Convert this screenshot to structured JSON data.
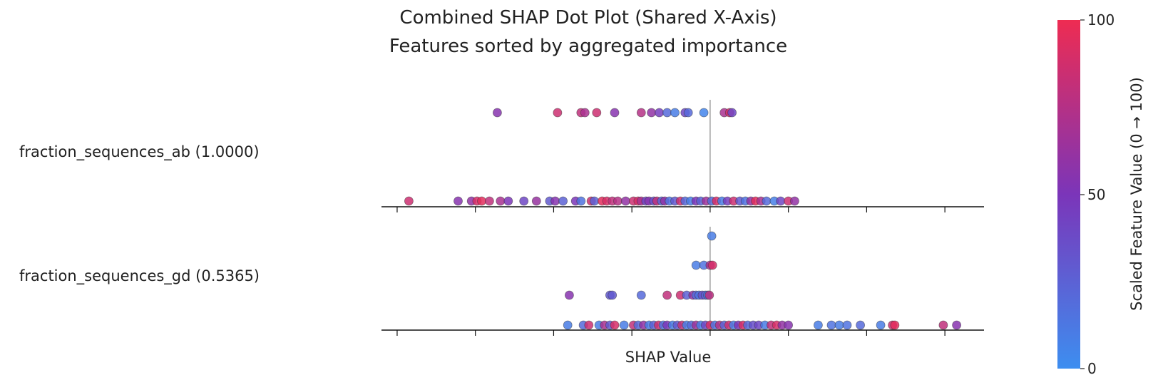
{
  "chart_data": {
    "type": "scatter",
    "title": "Combined SHAP Dot Plot (Shared X-Axis)",
    "subtitle": "Features sorted by aggregated importance",
    "xlabel": "SHAP Value",
    "xlim": [
      -0.42,
      0.35
    ],
    "x_tick_values": [
      -0.4,
      -0.3,
      -0.2,
      -0.1,
      0.0,
      0.1,
      0.2,
      0.3
    ],
    "x_tick_labels_shown": false,
    "reference_line_x": 0.0,
    "colorbar": {
      "label": "Scaled Feature Value (0 → 100)",
      "min": 0,
      "max": 100,
      "ticks": [
        "100",
        "50",
        "0"
      ],
      "colors": {
        "low": "#3d8ef0",
        "mid": "#7b35b9",
        "high": "#ee2c52"
      }
    },
    "panels": [
      {
        "feature": "fraction_sequences_ab (1.0000)",
        "points": [
          {
            "x": -0.385,
            "y": 0,
            "c": 85
          },
          {
            "x": -0.322,
            "y": 0,
            "c": 55
          },
          {
            "x": -0.305,
            "y": 0,
            "c": 60
          },
          {
            "x": -0.298,
            "y": 0,
            "c": 90
          },
          {
            "x": -0.292,
            "y": 0,
            "c": 95
          },
          {
            "x": -0.282,
            "y": 0,
            "c": 80
          },
          {
            "x": -0.268,
            "y": 0,
            "c": 70
          },
          {
            "x": -0.258,
            "y": 0,
            "c": 50
          },
          {
            "x": -0.238,
            "y": 0,
            "c": 40
          },
          {
            "x": -0.222,
            "y": 0,
            "c": 62
          },
          {
            "x": -0.205,
            "y": 0,
            "c": 30
          },
          {
            "x": -0.198,
            "y": 0,
            "c": 55
          },
          {
            "x": -0.188,
            "y": 0,
            "c": 25
          },
          {
            "x": -0.172,
            "y": 0,
            "c": 50
          },
          {
            "x": -0.165,
            "y": 0,
            "c": 15
          },
          {
            "x": -0.152,
            "y": 0,
            "c": 85
          },
          {
            "x": -0.148,
            "y": 0,
            "c": 25
          },
          {
            "x": -0.138,
            "y": 0,
            "c": 95
          },
          {
            "x": -0.132,
            "y": 0,
            "c": 90
          },
          {
            "x": -0.125,
            "y": 0,
            "c": 80
          },
          {
            "x": -0.118,
            "y": 0,
            "c": 75
          },
          {
            "x": -0.108,
            "y": 0,
            "c": 60
          },
          {
            "x": -0.098,
            "y": 0,
            "c": 85
          },
          {
            "x": -0.092,
            "y": 0,
            "c": 90
          },
          {
            "x": -0.088,
            "y": 0,
            "c": 70
          },
          {
            "x": -0.082,
            "y": 0,
            "c": 40
          },
          {
            "x": -0.078,
            "y": 0,
            "c": 55
          },
          {
            "x": -0.072,
            "y": 0,
            "c": 35
          },
          {
            "x": -0.068,
            "y": 0,
            "c": 80
          },
          {
            "x": -0.062,
            "y": 0,
            "c": 25
          },
          {
            "x": -0.058,
            "y": 0,
            "c": 60
          },
          {
            "x": -0.052,
            "y": 0,
            "c": 15
          },
          {
            "x": -0.045,
            "y": 0,
            "c": 30
          },
          {
            "x": -0.038,
            "y": 0,
            "c": 85
          },
          {
            "x": -0.032,
            "y": 0,
            "c": 20
          },
          {
            "x": -0.025,
            "y": 0,
            "c": 10
          },
          {
            "x": -0.018,
            "y": 0,
            "c": 50
          },
          {
            "x": -0.012,
            "y": 0,
            "c": 25
          },
          {
            "x": -0.005,
            "y": 0,
            "c": 65
          },
          {
            "x": 0.002,
            "y": 0,
            "c": 20
          },
          {
            "x": 0.008,
            "y": 0,
            "c": 90
          },
          {
            "x": 0.015,
            "y": 0,
            "c": 10
          },
          {
            "x": 0.022,
            "y": 0,
            "c": 45
          },
          {
            "x": 0.03,
            "y": 0,
            "c": 85
          },
          {
            "x": 0.038,
            "y": 0,
            "c": 30
          },
          {
            "x": 0.045,
            "y": 0,
            "c": 15
          },
          {
            "x": 0.052,
            "y": 0,
            "c": 60
          },
          {
            "x": 0.058,
            "y": 0,
            "c": 95
          },
          {
            "x": 0.065,
            "y": 0,
            "c": 70
          },
          {
            "x": 0.072,
            "y": 0,
            "c": 20
          },
          {
            "x": 0.082,
            "y": 0,
            "c": 8
          },
          {
            "x": 0.09,
            "y": 0,
            "c": 40
          },
          {
            "x": 0.1,
            "y": 0,
            "c": 85
          },
          {
            "x": 0.108,
            "y": 0,
            "c": 60
          },
          {
            "x": -0.272,
            "y": 1,
            "c": 55
          },
          {
            "x": -0.195,
            "y": 1,
            "c": 85
          },
          {
            "x": -0.165,
            "y": 1,
            "c": 80
          },
          {
            "x": -0.16,
            "y": 1,
            "c": 70
          },
          {
            "x": -0.145,
            "y": 1,
            "c": 85
          },
          {
            "x": -0.122,
            "y": 1,
            "c": 55
          },
          {
            "x": -0.088,
            "y": 1,
            "c": 75
          },
          {
            "x": -0.075,
            "y": 1,
            "c": 60
          },
          {
            "x": -0.065,
            "y": 1,
            "c": 45
          },
          {
            "x": -0.055,
            "y": 1,
            "c": 20
          },
          {
            "x": -0.045,
            "y": 1,
            "c": 10
          },
          {
            "x": -0.032,
            "y": 1,
            "c": 40
          },
          {
            "x": -0.028,
            "y": 1,
            "c": 20
          },
          {
            "x": -0.008,
            "y": 1,
            "c": 5
          },
          {
            "x": 0.018,
            "y": 1,
            "c": 70
          },
          {
            "x": 0.025,
            "y": 1,
            "c": 90
          },
          {
            "x": 0.028,
            "y": 1,
            "c": 40
          }
        ]
      },
      {
        "feature": "fraction_sequences_gd (0.5365)",
        "points": [
          {
            "x": 0.002,
            "y": 3,
            "c": 10
          },
          {
            "x": -0.018,
            "y": 2,
            "c": 10
          },
          {
            "x": -0.008,
            "y": 2,
            "c": 15
          },
          {
            "x": 0.0,
            "y": 2,
            "c": 70
          },
          {
            "x": 0.003,
            "y": 2,
            "c": 90
          },
          {
            "x": -0.18,
            "y": 1,
            "c": 55
          },
          {
            "x": -0.128,
            "y": 1,
            "c": 30
          },
          {
            "x": -0.125,
            "y": 1,
            "c": 30
          },
          {
            "x": -0.088,
            "y": 1,
            "c": 20
          },
          {
            "x": -0.055,
            "y": 1,
            "c": 80
          },
          {
            "x": -0.038,
            "y": 1,
            "c": 85
          },
          {
            "x": -0.03,
            "y": 1,
            "c": 25
          },
          {
            "x": -0.022,
            "y": 1,
            "c": 60
          },
          {
            "x": -0.018,
            "y": 1,
            "c": 20
          },
          {
            "x": -0.014,
            "y": 1,
            "c": 15
          },
          {
            "x": -0.01,
            "y": 1,
            "c": 35
          },
          {
            "x": -0.006,
            "y": 1,
            "c": 25
          },
          {
            "x": -0.003,
            "y": 1,
            "c": 10
          },
          {
            "x": -0.001,
            "y": 1,
            "c": 80
          },
          {
            "x": -0.182,
            "y": 0,
            "c": 10
          },
          {
            "x": -0.162,
            "y": 0,
            "c": 20
          },
          {
            "x": -0.155,
            "y": 0,
            "c": 85
          },
          {
            "x": -0.142,
            "y": 0,
            "c": 10
          },
          {
            "x": -0.135,
            "y": 0,
            "c": 70
          },
          {
            "x": -0.128,
            "y": 0,
            "c": 30
          },
          {
            "x": -0.122,
            "y": 0,
            "c": 90
          },
          {
            "x": -0.11,
            "y": 0,
            "c": 10
          },
          {
            "x": -0.098,
            "y": 0,
            "c": 80
          },
          {
            "x": -0.092,
            "y": 0,
            "c": 20
          },
          {
            "x": -0.085,
            "y": 0,
            "c": 60
          },
          {
            "x": -0.078,
            "y": 0,
            "c": 10
          },
          {
            "x": -0.072,
            "y": 0,
            "c": 25
          },
          {
            "x": -0.066,
            "y": 0,
            "c": 85
          },
          {
            "x": -0.06,
            "y": 0,
            "c": 15
          },
          {
            "x": -0.055,
            "y": 0,
            "c": 50
          },
          {
            "x": -0.048,
            "y": 0,
            "c": 10
          },
          {
            "x": -0.042,
            "y": 0,
            "c": 30
          },
          {
            "x": -0.036,
            "y": 0,
            "c": 80
          },
          {
            "x": -0.03,
            "y": 0,
            "c": 10
          },
          {
            "x": -0.024,
            "y": 0,
            "c": 20
          },
          {
            "x": -0.018,
            "y": 0,
            "c": 65
          },
          {
            "x": -0.012,
            "y": 0,
            "c": 10
          },
          {
            "x": -0.006,
            "y": 0,
            "c": 40
          },
          {
            "x": 0.0,
            "y": 0,
            "c": 90
          },
          {
            "x": 0.006,
            "y": 0,
            "c": 15
          },
          {
            "x": 0.012,
            "y": 0,
            "c": 75
          },
          {
            "x": 0.018,
            "y": 0,
            "c": 25
          },
          {
            "x": 0.024,
            "y": 0,
            "c": 85
          },
          {
            "x": 0.03,
            "y": 0,
            "c": 10
          },
          {
            "x": 0.036,
            "y": 0,
            "c": 50
          },
          {
            "x": 0.042,
            "y": 0,
            "c": 90
          },
          {
            "x": 0.048,
            "y": 0,
            "c": 20
          },
          {
            "x": 0.055,
            "y": 0,
            "c": 35
          },
          {
            "x": 0.062,
            "y": 0,
            "c": 40
          },
          {
            "x": 0.07,
            "y": 0,
            "c": 10
          },
          {
            "x": 0.078,
            "y": 0,
            "c": 80
          },
          {
            "x": 0.085,
            "y": 0,
            "c": 90
          },
          {
            "x": 0.092,
            "y": 0,
            "c": 60
          },
          {
            "x": 0.1,
            "y": 0,
            "c": 55
          },
          {
            "x": 0.138,
            "y": 0,
            "c": 10
          },
          {
            "x": 0.155,
            "y": 0,
            "c": 15
          },
          {
            "x": 0.165,
            "y": 0,
            "c": 10
          },
          {
            "x": 0.175,
            "y": 0,
            "c": 15
          },
          {
            "x": 0.192,
            "y": 0,
            "c": 20
          },
          {
            "x": 0.218,
            "y": 0,
            "c": 10
          },
          {
            "x": 0.233,
            "y": 0,
            "c": 85
          },
          {
            "x": 0.236,
            "y": 0,
            "c": 95
          },
          {
            "x": 0.298,
            "y": 0,
            "c": 80
          },
          {
            "x": 0.315,
            "y": 0,
            "c": 55
          }
        ]
      }
    ]
  }
}
